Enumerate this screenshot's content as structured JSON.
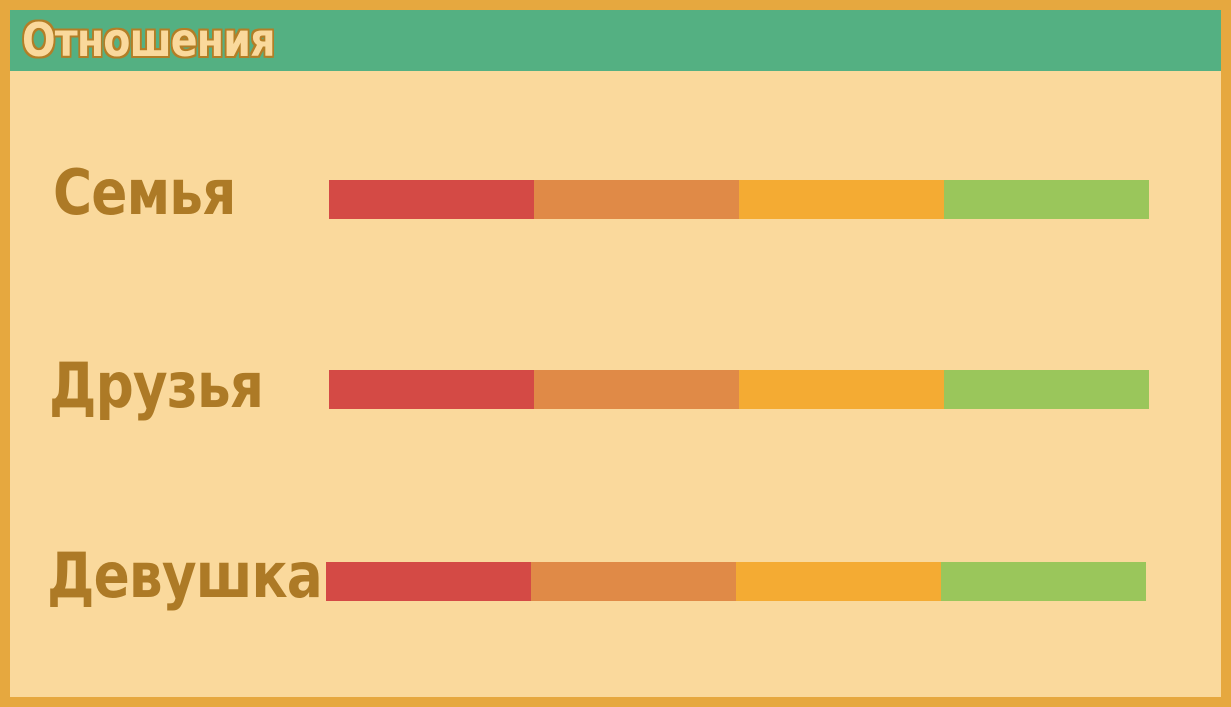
{
  "header": {
    "title": "Отношения"
  },
  "relationships": [
    {
      "label": "Семья"
    },
    {
      "label": "Друзья"
    },
    {
      "label": "Девушка"
    }
  ],
  "meter_segment_colors": [
    "#d44a45",
    "#e08a47",
    "#f4ab33",
    "#9ac65b"
  ]
}
